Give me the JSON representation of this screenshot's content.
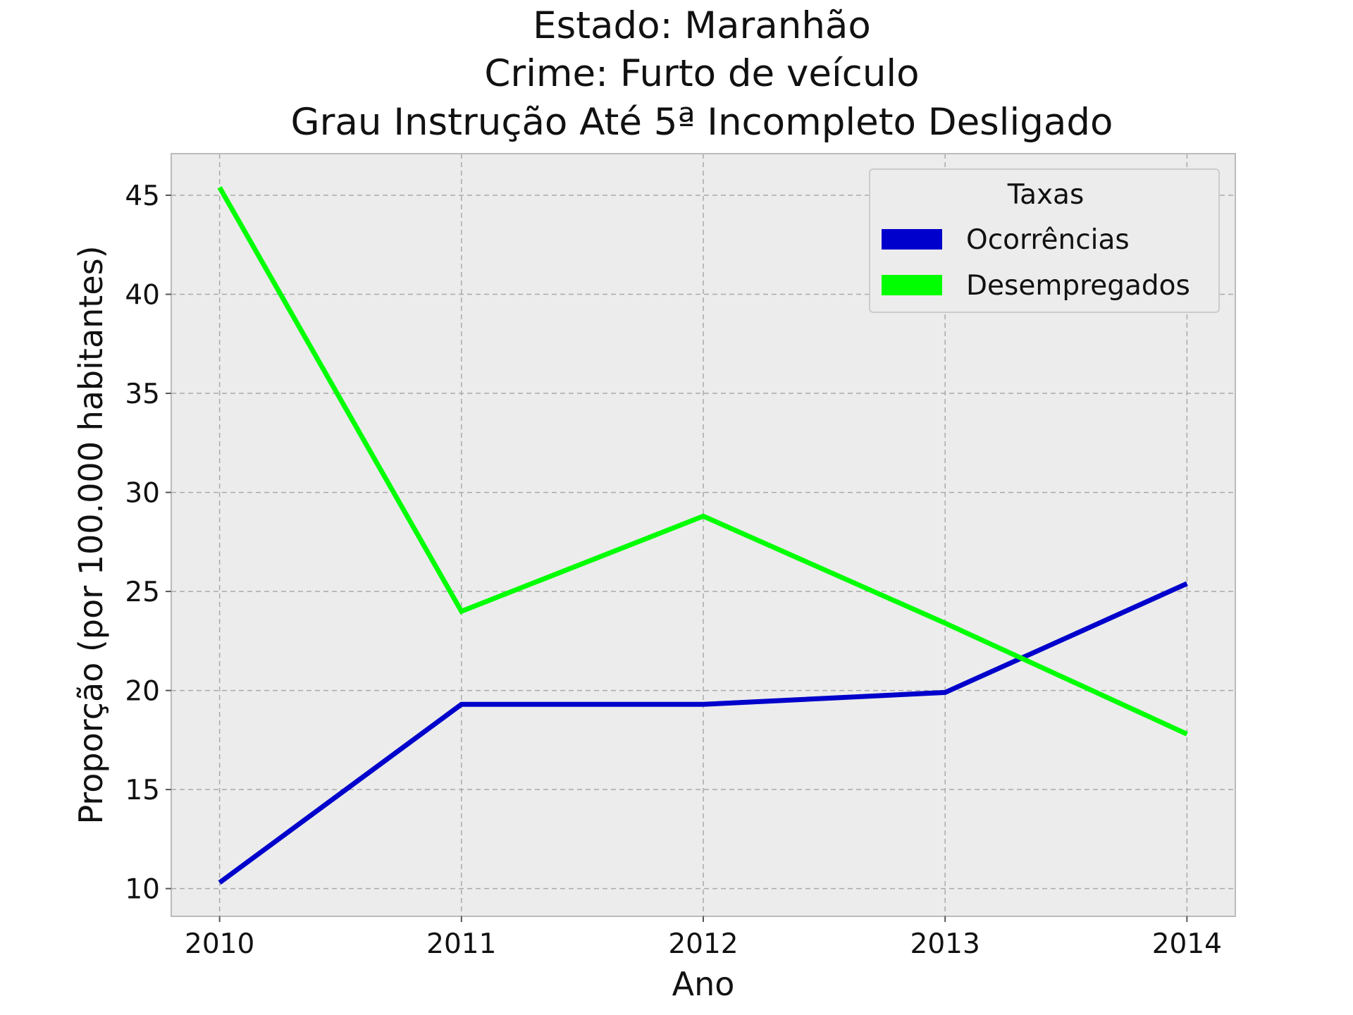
{
  "chart_data": {
    "type": "line",
    "title_lines": [
      "Estado: Maranhão",
      "Crime: Furto de veículo",
      "Grau Instrução  Até 5ª Incompleto   Desligado"
    ],
    "xlabel": "Ano",
    "ylabel": "Proporção (por 100.000 habitantes)",
    "x": [
      2010,
      2011,
      2012,
      2013,
      2014
    ],
    "x_tick_labels": [
      "2010",
      "2011",
      "2012",
      "2013",
      "2014"
    ],
    "xlim": [
      2009.8,
      2014.2
    ],
    "y_ticks": [
      10,
      15,
      20,
      25,
      30,
      35,
      40,
      45
    ],
    "y_tick_labels": [
      "10",
      "15",
      "20",
      "25",
      "30",
      "35",
      "40",
      "45"
    ],
    "ylim": [
      8.6,
      47.1
    ],
    "grid": true,
    "legend": {
      "title": "Taxas",
      "placement": "upper right"
    },
    "series": [
      {
        "name": "Ocorrências",
        "color": "#0000cc",
        "values": [
          10.3,
          19.3,
          19.3,
          19.9,
          25.4
        ]
      },
      {
        "name": "Desempregados",
        "color": "#00ff00",
        "values": [
          45.4,
          24.0,
          28.8,
          23.4,
          17.8
        ]
      }
    ]
  },
  "colors": {
    "plot_background": "#ececec",
    "plot_border": "#bbbbbb",
    "legend_background": "#ececec",
    "legend_border": "#cccccc"
  }
}
